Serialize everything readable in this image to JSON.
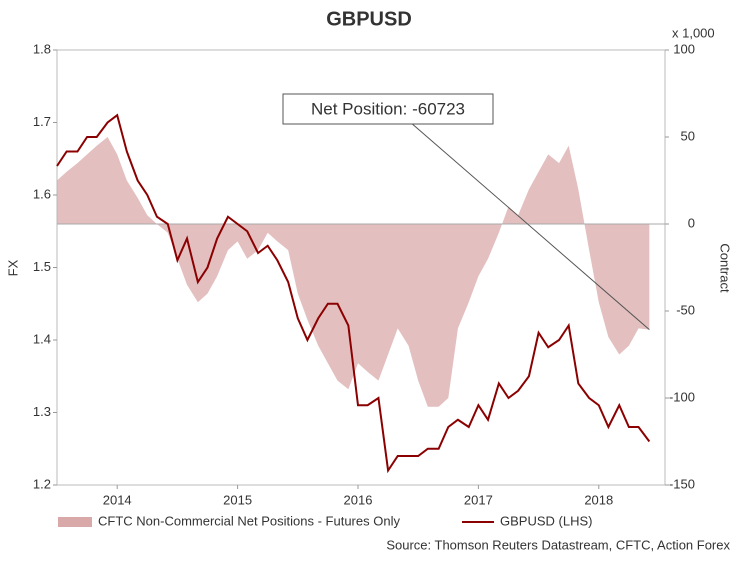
{
  "chart_data": {
    "type": "line",
    "title": "GBPUSD",
    "y_label": "FX",
    "y2_label": "Contract",
    "y2_unit": "x 1,000",
    "x": [
      2014.0,
      2014.08,
      2014.17,
      2014.25,
      2014.33,
      2014.42,
      2014.5,
      2014.58,
      2014.67,
      2014.75,
      2014.83,
      2014.92,
      2015.0,
      2015.08,
      2015.17,
      2015.25,
      2015.33,
      2015.42,
      2015.5,
      2015.58,
      2015.67,
      2015.75,
      2015.83,
      2015.92,
      2016.0,
      2016.08,
      2016.17,
      2016.25,
      2016.33,
      2016.42,
      2016.5,
      2016.58,
      2016.67,
      2016.75,
      2016.83,
      2016.92,
      2017.0,
      2017.08,
      2017.17,
      2017.25,
      2017.33,
      2017.42,
      2017.5,
      2017.58,
      2017.67,
      2017.75,
      2017.83,
      2017.92,
      2018.0,
      2018.08,
      2018.17,
      2018.25,
      2018.33,
      2018.42,
      2018.5,
      2018.58,
      2018.67,
      2018.75,
      2018.83,
      2018.92
    ],
    "xlim": [
      2014.0,
      2019.05
    ],
    "xticks": [
      {
        "value": 2014.5,
        "label": "2014"
      },
      {
        "value": 2015.5,
        "label": "2015"
      },
      {
        "value": 2016.5,
        "label": "2016"
      },
      {
        "value": 2017.5,
        "label": "2017"
      },
      {
        "value": 2018.5,
        "label": "2018"
      }
    ],
    "ylim": [
      1.2,
      1.8
    ],
    "yticks": [
      1.2,
      1.3,
      1.4,
      1.5,
      1.6,
      1.7,
      1.8
    ],
    "y2lim": [
      -150,
      100
    ],
    "y2ticks": [
      -150,
      -100,
      -50,
      0,
      50,
      100
    ],
    "series": [
      {
        "name": "CFTC Non-Commercial Net Positions - Futures Only",
        "type": "area",
        "axis": "y2",
        "color": "#d9a9a9",
        "values": [
          25,
          30,
          35,
          40,
          45,
          50,
          40,
          25,
          15,
          5,
          0,
          -5,
          -20,
          -35,
          -45,
          -40,
          -30,
          -15,
          -10,
          -20,
          -15,
          -5,
          -10,
          -15,
          -40,
          -55,
          -70,
          -80,
          -90,
          -95,
          -80,
          -85,
          -90,
          -75,
          -60,
          -70,
          -90,
          -105,
          -105,
          -100,
          -60,
          -45,
          -30,
          -20,
          -5,
          10,
          5,
          20,
          30,
          40,
          35,
          45,
          20,
          -15,
          -45,
          -65,
          -75,
          -70,
          -60,
          -60.723
        ]
      },
      {
        "name": "GBPUSD (LHS)",
        "type": "line",
        "color": "#8b0000",
        "values": [
          1.64,
          1.66,
          1.66,
          1.68,
          1.68,
          1.7,
          1.71,
          1.66,
          1.62,
          1.6,
          1.57,
          1.56,
          1.51,
          1.54,
          1.48,
          1.5,
          1.54,
          1.57,
          1.56,
          1.55,
          1.52,
          1.53,
          1.51,
          1.48,
          1.43,
          1.4,
          1.43,
          1.45,
          1.45,
          1.42,
          1.31,
          1.31,
          1.32,
          1.22,
          1.24,
          1.24,
          1.24,
          1.25,
          1.25,
          1.28,
          1.29,
          1.28,
          1.31,
          1.29,
          1.34,
          1.32,
          1.33,
          1.35,
          1.41,
          1.39,
          1.4,
          1.42,
          1.34,
          1.32,
          1.31,
          1.28,
          1.31,
          1.28,
          1.28,
          1.26
        ]
      }
    ],
    "annotation": "Net Position: -60723",
    "source": "Source: Thomson Reuters Datastream, CFTC, Action Forex"
  }
}
